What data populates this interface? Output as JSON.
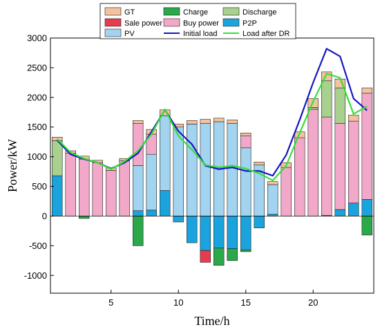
{
  "chart_data": {
    "type": "bar",
    "xlabel": "Time/h",
    "ylabel": "Power/kW",
    "xlim": [
      0.5,
      24.5
    ],
    "ylim": [
      -1300,
      3000
    ],
    "x_ticks": [
      5,
      10,
      15,
      20
    ],
    "y_ticks": [
      -1000,
      -500,
      0,
      500,
      1000,
      1500,
      2000,
      2500,
      3000
    ],
    "stacked": true,
    "x": [
      1,
      2,
      3,
      4,
      5,
      6,
      7,
      8,
      9,
      10,
      11,
      12,
      13,
      14,
      15,
      16,
      17,
      18,
      19,
      20,
      21,
      22,
      23,
      24
    ],
    "series": [
      {
        "name": "P2P",
        "color": "#1aa3dd",
        "values": [
          680,
          0,
          0,
          0,
          0,
          0,
          90,
          100,
          430,
          -100,
          -450,
          -580,
          -540,
          -550,
          -570,
          -200,
          30,
          0,
          0,
          0,
          10,
          110,
          220,
          280
        ]
      },
      {
        "name": "PV",
        "color": "#a2d3ef",
        "values": [
          0,
          0,
          0,
          0,
          0,
          0,
          760,
          940,
          1260,
          1500,
          1550,
          1560,
          1590,
          1560,
          1150,
          860,
          500,
          0,
          0,
          0,
          0,
          0,
          0,
          0
        ]
      },
      {
        "name": "Buy power",
        "color": "#f2a8c8",
        "values": [
          0,
          1060,
          960,
          900,
          770,
          930,
          710,
          340,
          0,
          0,
          0,
          0,
          0,
          0,
          200,
          0,
          0,
          820,
          1320,
          1800,
          1660,
          1450,
          1380,
          1790
        ]
      },
      {
        "name": "Sale power",
        "color": "#e53d4f",
        "values": [
          0,
          0,
          0,
          0,
          0,
          0,
          0,
          0,
          0,
          0,
          0,
          -200,
          0,
          0,
          0,
          0,
          0,
          0,
          0,
          0,
          0,
          0,
          0,
          0
        ]
      },
      {
        "name": "Charge",
        "color": "#2aa84a",
        "values": [
          0,
          0,
          -40,
          0,
          0,
          0,
          -500,
          0,
          0,
          0,
          0,
          0,
          -290,
          -200,
          -30,
          0,
          0,
          0,
          0,
          0,
          0,
          0,
          0,
          -320
        ]
      },
      {
        "name": "Discharge",
        "color": "#a9d08e",
        "values": [
          590,
          0,
          0,
          0,
          0,
          0,
          0,
          0,
          0,
          0,
          0,
          0,
          0,
          0,
          0,
          0,
          0,
          0,
          0,
          30,
          610,
          600,
          0,
          0
        ]
      },
      {
        "name": "GT",
        "color": "#f2c39e",
        "values": [
          60,
          40,
          50,
          40,
          40,
          40,
          50,
          80,
          100,
          50,
          60,
          70,
          60,
          60,
          50,
          50,
          50,
          80,
          100,
          150,
          150,
          150,
          100,
          90
        ]
      }
    ],
    "lines": [
      {
        "name": "Initial load",
        "color": "#1515c4",
        "values": [
          1280,
          1040,
          960,
          900,
          800,
          900,
          1060,
          1420,
          1790,
          1430,
          1210,
          850,
          790,
          820,
          760,
          760,
          680,
          1030,
          1620,
          2250,
          2820,
          2690,
          1980,
          1780
        ]
      },
      {
        "name": "Load after DR",
        "color": "#33e033",
        "values": [
          1300,
          1070,
          970,
          900,
          790,
          920,
          1100,
          1380,
          1800,
          1350,
          1120,
          860,
          820,
          850,
          800,
          720,
          600,
          850,
          1400,
          1930,
          2400,
          2330,
          1720,
          1850
        ]
      }
    ],
    "legend": {
      "position": "top",
      "entries": [
        {
          "label": "GT",
          "color": "#f2c39e",
          "kind": "box"
        },
        {
          "label": "Charge",
          "color": "#2aa84a",
          "kind": "box"
        },
        {
          "label": "Discharge",
          "color": "#a9d08e",
          "kind": "box"
        },
        {
          "label": "Sale power",
          "color": "#e53d4f",
          "kind": "box"
        },
        {
          "label": "Buy power",
          "color": "#f2a8c8",
          "kind": "box"
        },
        {
          "label": "P2P",
          "color": "#1aa3dd",
          "kind": "box"
        },
        {
          "label": "PV",
          "color": "#a2d3ef",
          "kind": "box"
        },
        {
          "label": "Initial load",
          "color": "#1515c4",
          "kind": "line"
        },
        {
          "label": "Load after DR",
          "color": "#33e033",
          "kind": "line"
        }
      ]
    }
  }
}
